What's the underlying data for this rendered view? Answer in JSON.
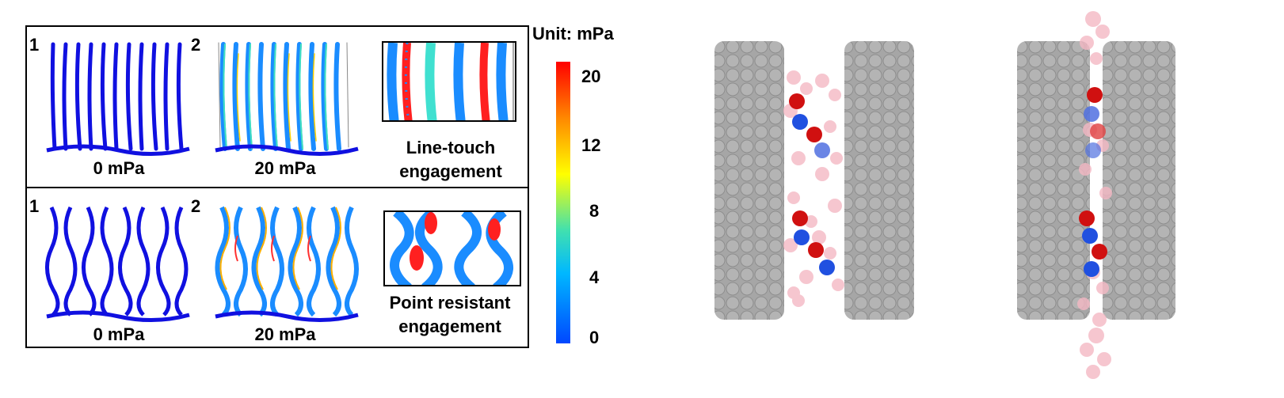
{
  "colorbar": {
    "unit_label": "Unit: mPa",
    "ticks": [
      "20",
      "12",
      "8",
      "4",
      "0"
    ],
    "colors": [
      "#0047ff",
      "#00c8ff",
      "#40e0a0",
      "#ffff00",
      "#ff8800",
      "#ff0000"
    ]
  },
  "top_row": {
    "panel1": {
      "number": "1",
      "caption": "0 mPa"
    },
    "panel2": {
      "number": "2",
      "caption": "20 mPa"
    },
    "description_line1": "Line-touch",
    "description_line2": "engagement"
  },
  "bottom_row": {
    "panel1": {
      "number": "1",
      "caption": "0 mPa"
    },
    "panel2": {
      "number": "2",
      "caption": "20 mPa"
    },
    "description_line1": "Point resistant",
    "description_line2": "engagement"
  },
  "colors": {
    "fiber_blue": "#1010e0",
    "stress_red": "#e02020",
    "graphene_gray": "#a0a0a0",
    "atom_red": "#d01010",
    "atom_blue": "#2050e0",
    "atom_pink": "#f4b8c4"
  }
}
